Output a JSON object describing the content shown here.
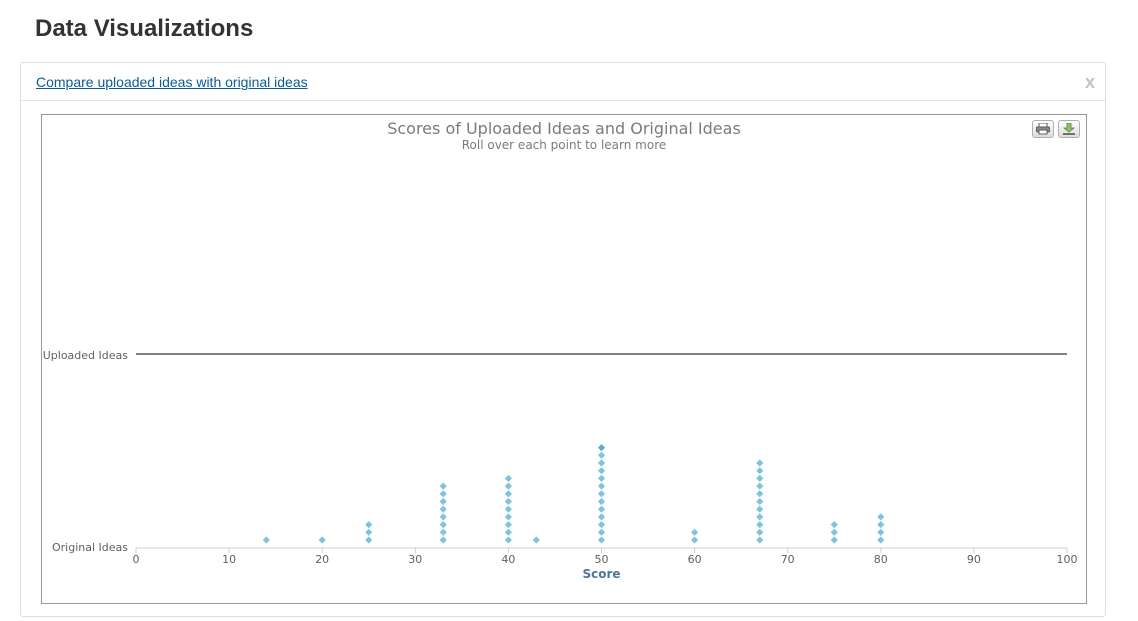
{
  "page": {
    "title": "Data Visualizations"
  },
  "panel": {
    "link_label": "Compare uploaded ideas with original ideas",
    "close_label": "x"
  },
  "toolbar": {
    "icons": [
      "print-icon",
      "download-icon"
    ]
  },
  "colors": {
    "point": "#7fc4df",
    "point_dark": "#5aaed3",
    "axis": "#c0d0e0",
    "line": "#000000"
  },
  "chart_data": {
    "type": "scatter",
    "title": "Scores of Uploaded Ideas and Original Ideas",
    "subtitle": "Roll over each point to learn more",
    "xlabel": "Score",
    "ylabel": "",
    "xlim": [
      0,
      100
    ],
    "x_ticks": [
      0,
      10,
      20,
      30,
      40,
      50,
      60,
      70,
      80,
      90,
      100
    ],
    "categories": [
      "Original Ideas",
      "Uploaded Ideas"
    ],
    "series": [
      {
        "name": "Original Ideas",
        "points": [
          {
            "x": 14,
            "count": 1
          },
          {
            "x": 20,
            "count": 1
          },
          {
            "x": 25,
            "count": 3
          },
          {
            "x": 33,
            "count": 8
          },
          {
            "x": 40,
            "count": 9
          },
          {
            "x": 43,
            "count": 1
          },
          {
            "x": 50,
            "count": 13
          },
          {
            "x": 60,
            "count": 2
          },
          {
            "x": 67,
            "count": 11
          },
          {
            "x": 75,
            "count": 3
          },
          {
            "x": 80,
            "count": 4
          }
        ]
      },
      {
        "name": "Uploaded Ideas",
        "points": []
      }
    ]
  }
}
